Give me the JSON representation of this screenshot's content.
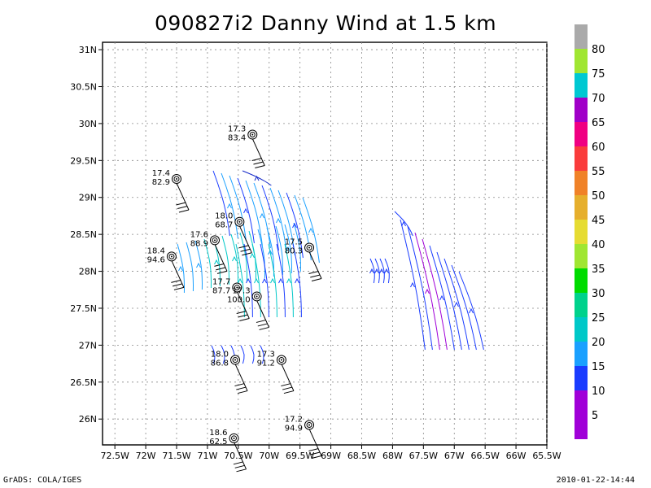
{
  "title": "090827i2 Danny Wind at 1.5 km",
  "footer": {
    "left": "GrADS: COLA/IGES",
    "right": "2010-01-22-14:44"
  },
  "map": {
    "lon_range": [
      -72.7,
      -65.5
    ],
    "lat_range": [
      25.65,
      31.1
    ],
    "lon_ticks": [
      {
        "lon": -72.5,
        "label": "72.5W"
      },
      {
        "lon": -72,
        "label": "72W"
      },
      {
        "lon": -71.5,
        "label": "71.5W"
      },
      {
        "lon": -71,
        "label": "71W"
      },
      {
        "lon": -70.5,
        "label": "70.5W"
      },
      {
        "lon": -70,
        "label": "70W"
      },
      {
        "lon": -69.5,
        "label": "69.5W"
      },
      {
        "lon": -69,
        "label": "69W"
      },
      {
        "lon": -68.5,
        "label": "68.5W"
      },
      {
        "lon": -68,
        "label": "68W"
      },
      {
        "lon": -67.5,
        "label": "67.5W"
      },
      {
        "lon": -67,
        "label": "67W"
      },
      {
        "lon": -66.5,
        "label": "66.5W"
      },
      {
        "lon": -66,
        "label": "66W"
      },
      {
        "lon": -65.5,
        "label": "65.5W"
      }
    ],
    "lat_ticks": [
      {
        "lat": 26,
        "label": "26N"
      },
      {
        "lat": 26.5,
        "label": "26.5N"
      },
      {
        "lat": 27,
        "label": "27N"
      },
      {
        "lat": 27.5,
        "label": "27.5N"
      },
      {
        "lat": 28,
        "label": "28N"
      },
      {
        "lat": 28.5,
        "label": "28.5N"
      },
      {
        "lat": 29,
        "label": "29N"
      },
      {
        "lat": 29.5,
        "label": "29.5N"
      },
      {
        "lat": 30,
        "label": "30N"
      },
      {
        "lat": 30.5,
        "label": "30.5N"
      },
      {
        "lat": 31,
        "label": "31N"
      }
    ],
    "grid": true,
    "stations": [
      {
        "lon": -70.27,
        "lat": 29.85,
        "temp": "17.3",
        "pres": "83.4"
      },
      {
        "lon": -71.5,
        "lat": 29.25,
        "temp": "17.4",
        "pres": "82.9"
      },
      {
        "lon": -70.48,
        "lat": 28.67,
        "temp": "18.0",
        "pres": "68.7"
      },
      {
        "lon": -70.88,
        "lat": 28.42,
        "temp": "17.6",
        "pres": "88.9"
      },
      {
        "lon": -71.58,
        "lat": 28.2,
        "temp": "18.4",
        "pres": "94.6"
      },
      {
        "lon": -69.35,
        "lat": 28.32,
        "temp": "17.5",
        "pres": "80.3"
      },
      {
        "lon": -70.52,
        "lat": 27.78,
        "temp": "17.7",
        "pres": "87.7"
      },
      {
        "lon": -70.2,
        "lat": 27.66,
        "temp": "17.3",
        "pres": "100.0"
      },
      {
        "lon": -70.55,
        "lat": 26.8,
        "temp": "18.0",
        "pres": "86.8"
      },
      {
        "lon": -69.8,
        "lat": 26.8,
        "temp": "17.3",
        "pres": "91.2"
      },
      {
        "lon": -69.35,
        "lat": 25.92,
        "temp": "17.2",
        "pres": "94.9"
      },
      {
        "lon": -70.57,
        "lat": 25.74,
        "temp": "18.6",
        "pres": "62.5"
      }
    ]
  },
  "colorbar": {
    "segments": [
      {
        "color": "#a000d8"
      },
      {
        "color": "#a000d8"
      },
      {
        "color": "#1a3cff"
      },
      {
        "color": "#1aa0ff"
      },
      {
        "color": "#00c8c8"
      },
      {
        "color": "#00d28c"
      },
      {
        "color": "#00dc00"
      },
      {
        "color": "#a0e632"
      },
      {
        "color": "#e6dc32"
      },
      {
        "color": "#e6af2d"
      },
      {
        "color": "#f08228"
      },
      {
        "color": "#fa3c3c"
      },
      {
        "color": "#f00082"
      },
      {
        "color": "#a000c8"
      },
      {
        "color": "#00c8d2"
      },
      {
        "color": "#a0e632"
      },
      {
        "color": "#aaaaaa"
      }
    ],
    "labels": [
      "5",
      "10",
      "15",
      "20",
      "25",
      "30",
      "35",
      "40",
      "45",
      "50",
      "55",
      "60",
      "65",
      "70",
      "75",
      "80"
    ]
  },
  "colors": {
    "blue": "#1a3cff",
    "navy": "#1428c8",
    "lightblue": "#1aa0ff",
    "cyan": "#00c8c8",
    "purple": "#a000d8"
  }
}
